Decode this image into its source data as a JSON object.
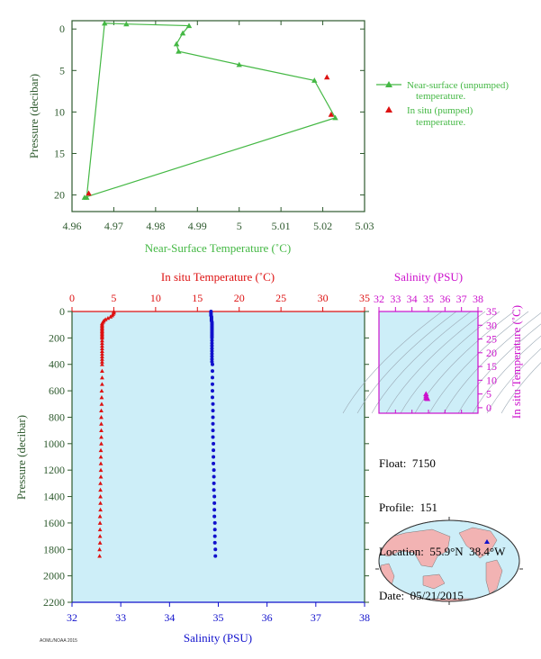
{
  "colors": {
    "green": "#44b844",
    "red": "#dd1111",
    "blue": "#1111cc",
    "magenta": "#cc11cc",
    "axis_green": "#2e5a2e",
    "panel_bg": "#cdeef8",
    "land": "#f2b3b3",
    "ocean": "#cdeef8"
  },
  "float_info": {
    "float_label": "Float:",
    "float_value": "7150",
    "profile_label": "Profile:",
    "profile_value": "151",
    "location_label": "Location:",
    "location_value": "55.9°N  38.4°W",
    "date_label": "Date:",
    "date_value": "05/21/2015"
  },
  "footer_text": "AOML/NOAA 2015",
  "chart_data": [
    {
      "id": "near-surface",
      "type": "line",
      "xlabel": "Near-Surface Temperature (˚C)",
      "ylabel": "Pressure (decibar)",
      "xlim": [
        4.96,
        5.03
      ],
      "ylim": [
        22,
        -1
      ],
      "xticks": [
        "4.96",
        "4.97",
        "4.98",
        "4.99",
        "5",
        "5.01",
        "5.02",
        "5.03"
      ],
      "yticks": [
        "0",
        "5",
        "10",
        "15",
        "20"
      ],
      "legend_position": "right",
      "series": [
        {
          "name": "Near-surface (unpumped) temperature.",
          "color": "green",
          "marker": "triangle",
          "x": [
            4.9635,
            4.9678,
            4.973,
            4.988,
            4.9865,
            4.985,
            4.9855,
            5.0,
            5.018,
            5.023,
            4.963
          ],
          "y": [
            20.3,
            -0.7,
            -0.6,
            -0.4,
            0.5,
            1.8,
            2.7,
            4.3,
            6.2,
            10.7,
            20.3
          ]
        },
        {
          "name": "In situ (pumped) temperature.",
          "color": "red",
          "marker": "triangle",
          "x": [
            5.021,
            5.022,
            4.964
          ],
          "y": [
            5.8,
            10.3,
            19.8
          ]
        }
      ]
    },
    {
      "id": "profile",
      "type": "scatter",
      "title": "In situ Temperature (˚C)",
      "xlabel": "Salinity (PSU)",
      "ylabel": "Pressure (decibar)",
      "temp_lim": [
        0,
        35
      ],
      "temp_ticks": [
        "0",
        "5",
        "10",
        "15",
        "20",
        "25",
        "30",
        "35"
      ],
      "sal_lim": [
        32,
        38
      ],
      "sal_ticks": [
        "32",
        "33",
        "34",
        "35",
        "36",
        "37",
        "38"
      ],
      "ylim": [
        0,
        2200
      ],
      "yticks": [
        "0",
        "200",
        "400",
        "600",
        "800",
        "1000",
        "1200",
        "1400",
        "1600",
        "1800",
        "2000",
        "2200"
      ],
      "temperature": {
        "color": "red",
        "marker": "triangle",
        "p": [
          0,
          10,
          20,
          30,
          40,
          50,
          60,
          70,
          80,
          90,
          100,
          110,
          120,
          130,
          140,
          150,
          160,
          170,
          180,
          190,
          200,
          220,
          240,
          260,
          280,
          300,
          320,
          340,
          360,
          380,
          400,
          450,
          500,
          550,
          600,
          650,
          700,
          750,
          800,
          850,
          900,
          950,
          1000,
          1050,
          1100,
          1150,
          1200,
          1250,
          1300,
          1350,
          1400,
          1450,
          1500,
          1550,
          1600,
          1650,
          1700,
          1750,
          1800,
          1850
        ],
        "t": [
          5.0,
          5.0,
          4.9,
          4.8,
          4.6,
          4.3,
          4.0,
          3.8,
          3.7,
          3.6,
          3.6,
          3.6,
          3.6,
          3.6,
          3.6,
          3.6,
          3.6,
          3.6,
          3.6,
          3.6,
          3.6,
          3.6,
          3.6,
          3.6,
          3.6,
          3.6,
          3.6,
          3.6,
          3.6,
          3.6,
          3.6,
          3.6,
          3.6,
          3.6,
          3.55,
          3.55,
          3.55,
          3.5,
          3.5,
          3.5,
          3.5,
          3.5,
          3.5,
          3.45,
          3.45,
          3.45,
          3.45,
          3.45,
          3.4,
          3.4,
          3.4,
          3.4,
          3.4,
          3.35,
          3.35,
          3.35,
          3.35,
          3.35,
          3.3,
          3.3
        ]
      },
      "salinity": {
        "color": "blue",
        "marker": "circle",
        "p": [
          0,
          10,
          20,
          30,
          40,
          50,
          60,
          70,
          80,
          90,
          100,
          110,
          120,
          130,
          140,
          150,
          160,
          170,
          180,
          190,
          200,
          220,
          240,
          260,
          280,
          300,
          320,
          340,
          360,
          380,
          400,
          450,
          500,
          550,
          600,
          650,
          700,
          750,
          800,
          850,
          900,
          950,
          1000,
          1050,
          1100,
          1150,
          1200,
          1250,
          1300,
          1350,
          1400,
          1450,
          1500,
          1550,
          1600,
          1650,
          1700,
          1750,
          1800,
          1850
        ],
        "s": [
          34.85,
          34.85,
          34.85,
          34.85,
          34.86,
          34.86,
          34.86,
          34.86,
          34.87,
          34.87,
          34.87,
          34.87,
          34.87,
          34.87,
          34.87,
          34.87,
          34.87,
          34.87,
          34.87,
          34.87,
          34.87,
          34.87,
          34.87,
          34.87,
          34.87,
          34.87,
          34.87,
          34.87,
          34.87,
          34.87,
          34.88,
          34.88,
          34.88,
          34.88,
          34.88,
          34.88,
          34.89,
          34.89,
          34.89,
          34.89,
          34.89,
          34.89,
          34.9,
          34.9,
          34.9,
          34.9,
          34.91,
          34.91,
          34.91,
          34.91,
          34.92,
          34.92,
          34.92,
          34.92,
          34.93,
          34.93,
          34.93,
          34.93,
          34.94,
          34.94
        ]
      }
    },
    {
      "id": "ts-diagram",
      "type": "scatter",
      "title": "Salinity (PSU)",
      "ylabel": "In situ Temperature (˚C)",
      "xlim": [
        32,
        38
      ],
      "ylim": [
        -2,
        35
      ],
      "xticks": [
        "32",
        "33",
        "34",
        "35",
        "36",
        "37",
        "38"
      ],
      "yticks": [
        "0",
        "5",
        "10",
        "15",
        "20",
        "25",
        "30",
        "35"
      ],
      "color": "magenta",
      "points": {
        "s": [
          34.85,
          34.86,
          34.87,
          34.88,
          34.9,
          34.92,
          34.94
        ],
        "t": [
          5.0,
          4.3,
          3.6,
          3.6,
          3.5,
          3.4,
          3.3
        ]
      }
    }
  ]
}
